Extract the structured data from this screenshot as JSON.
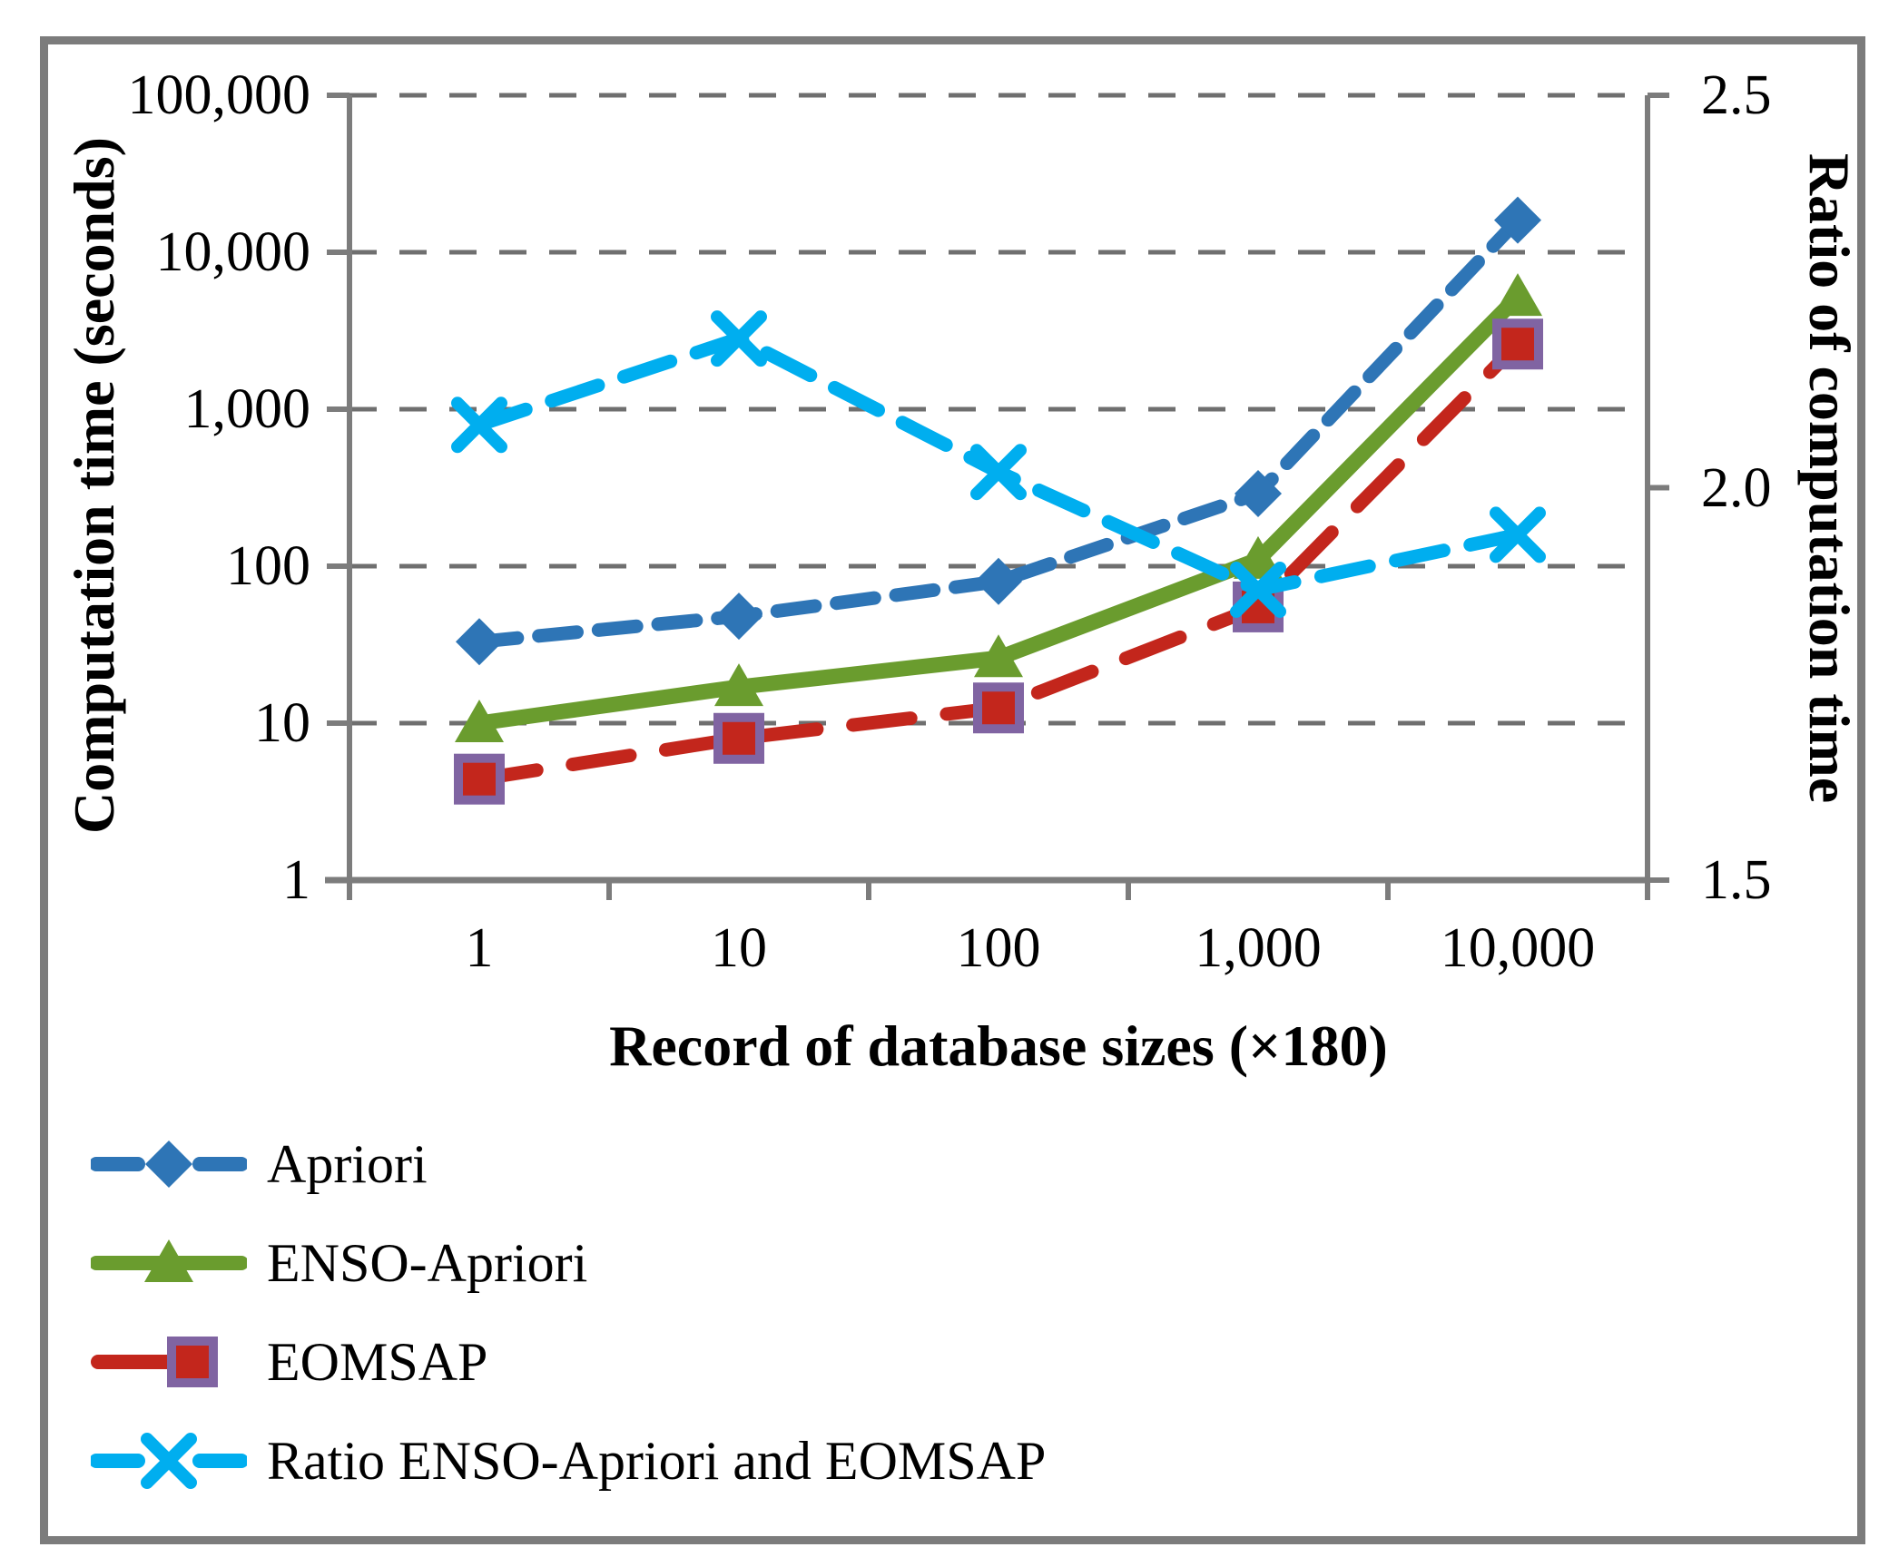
{
  "figure": {
    "background": "#FFFFFF",
    "border_color": "#7C7C7C",
    "text_color": "#000000"
  },
  "chart_data": {
    "type": "line",
    "title": "",
    "xlabel": "Record of database sizes (×180)",
    "x_scale": "log",
    "x": [
      1,
      10,
      100,
      1000,
      10000
    ],
    "x_tick_labels": [
      "1",
      "10",
      "100",
      "1,000",
      "10,000"
    ],
    "grid": "horizontal dashed gridlines at each decade of the left log axis",
    "grid_color": "#6F6F6F",
    "axis_color": "#7C7C7C",
    "legend_position": "bottom-left",
    "left_axis": {
      "label": "Computation time (seconds)",
      "scale": "log",
      "range": [
        1,
        100000
      ],
      "tick_values": [
        100000,
        10000,
        1000,
        100,
        10,
        1
      ],
      "tick_labels": [
        "100,000",
        "10,000",
        "1,000",
        "100",
        "10",
        "1"
      ]
    },
    "right_axis": {
      "label": "Ratio of computation time",
      "scale": "linear",
      "range": [
        1.5,
        2.5
      ],
      "tick_values": [
        2.5,
        2.0,
        1.5
      ],
      "tick_labels": [
        "2.5",
        "2.0",
        "1.5"
      ]
    },
    "series": [
      {
        "name": "Apriori",
        "axis": "left",
        "color": "#2E75B6",
        "line": "dashed",
        "marker": "diamond",
        "values": [
          33,
          48,
          80,
          290,
          16000
        ]
      },
      {
        "name": "ENSO-Apriori",
        "axis": "left",
        "color": "#6A9C2E",
        "line": "solid",
        "marker": "triangle",
        "values": [
          10,
          17,
          26,
          110,
          5200
        ]
      },
      {
        "name": "EOMSAP",
        "axis": "left",
        "color": "#C3261C",
        "line": "long-dashed",
        "marker": "square",
        "marker_border": "#8064A2",
        "values": [
          4.4,
          8,
          12.5,
          55,
          2600
        ]
      },
      {
        "name": "Ratio ENSO-Apriori and EOMSAP",
        "axis": "right",
        "color": "#00AEEF",
        "line": "dashed",
        "marker": "x",
        "values": [
          2.08,
          2.19,
          2.02,
          1.87,
          1.94
        ]
      }
    ]
  }
}
